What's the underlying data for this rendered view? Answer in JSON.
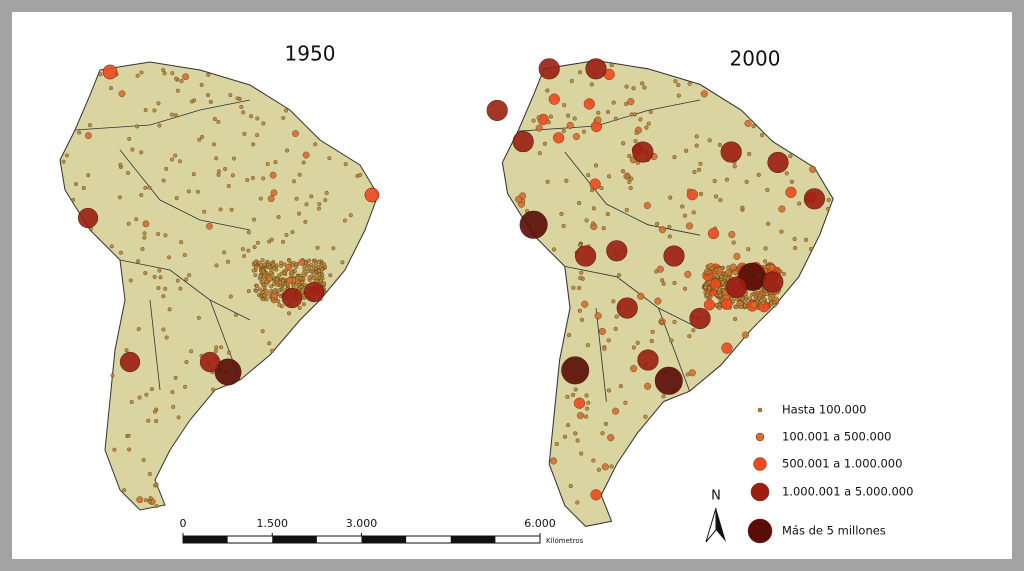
{
  "maps": [
    {
      "title": "1950"
    },
    {
      "title": "2000"
    }
  ],
  "legend": {
    "items": [
      {
        "label": "Hasta 100.000",
        "color": "#b98a3a"
      },
      {
        "label": "100.001 a 500.000",
        "color": "#d4702e"
      },
      {
        "label": "500.001 a 1.000.000",
        "color": "#ee4a1e"
      },
      {
        "label": "1.000.001 a 5.000.000",
        "color": "#9c1f12"
      },
      {
        "label": "Más de 5 millones",
        "color": "#5a0c06"
      }
    ]
  },
  "scale_bar": {
    "ticks": [
      0,
      {
        "value": 1500,
        "label": "1.500"
      },
      {
        "value": 3000,
        "label": "3.000"
      },
      {
        "value": 6000,
        "label": "6.000"
      }
    ],
    "unit": "Kilómetros"
  },
  "north": "N"
}
